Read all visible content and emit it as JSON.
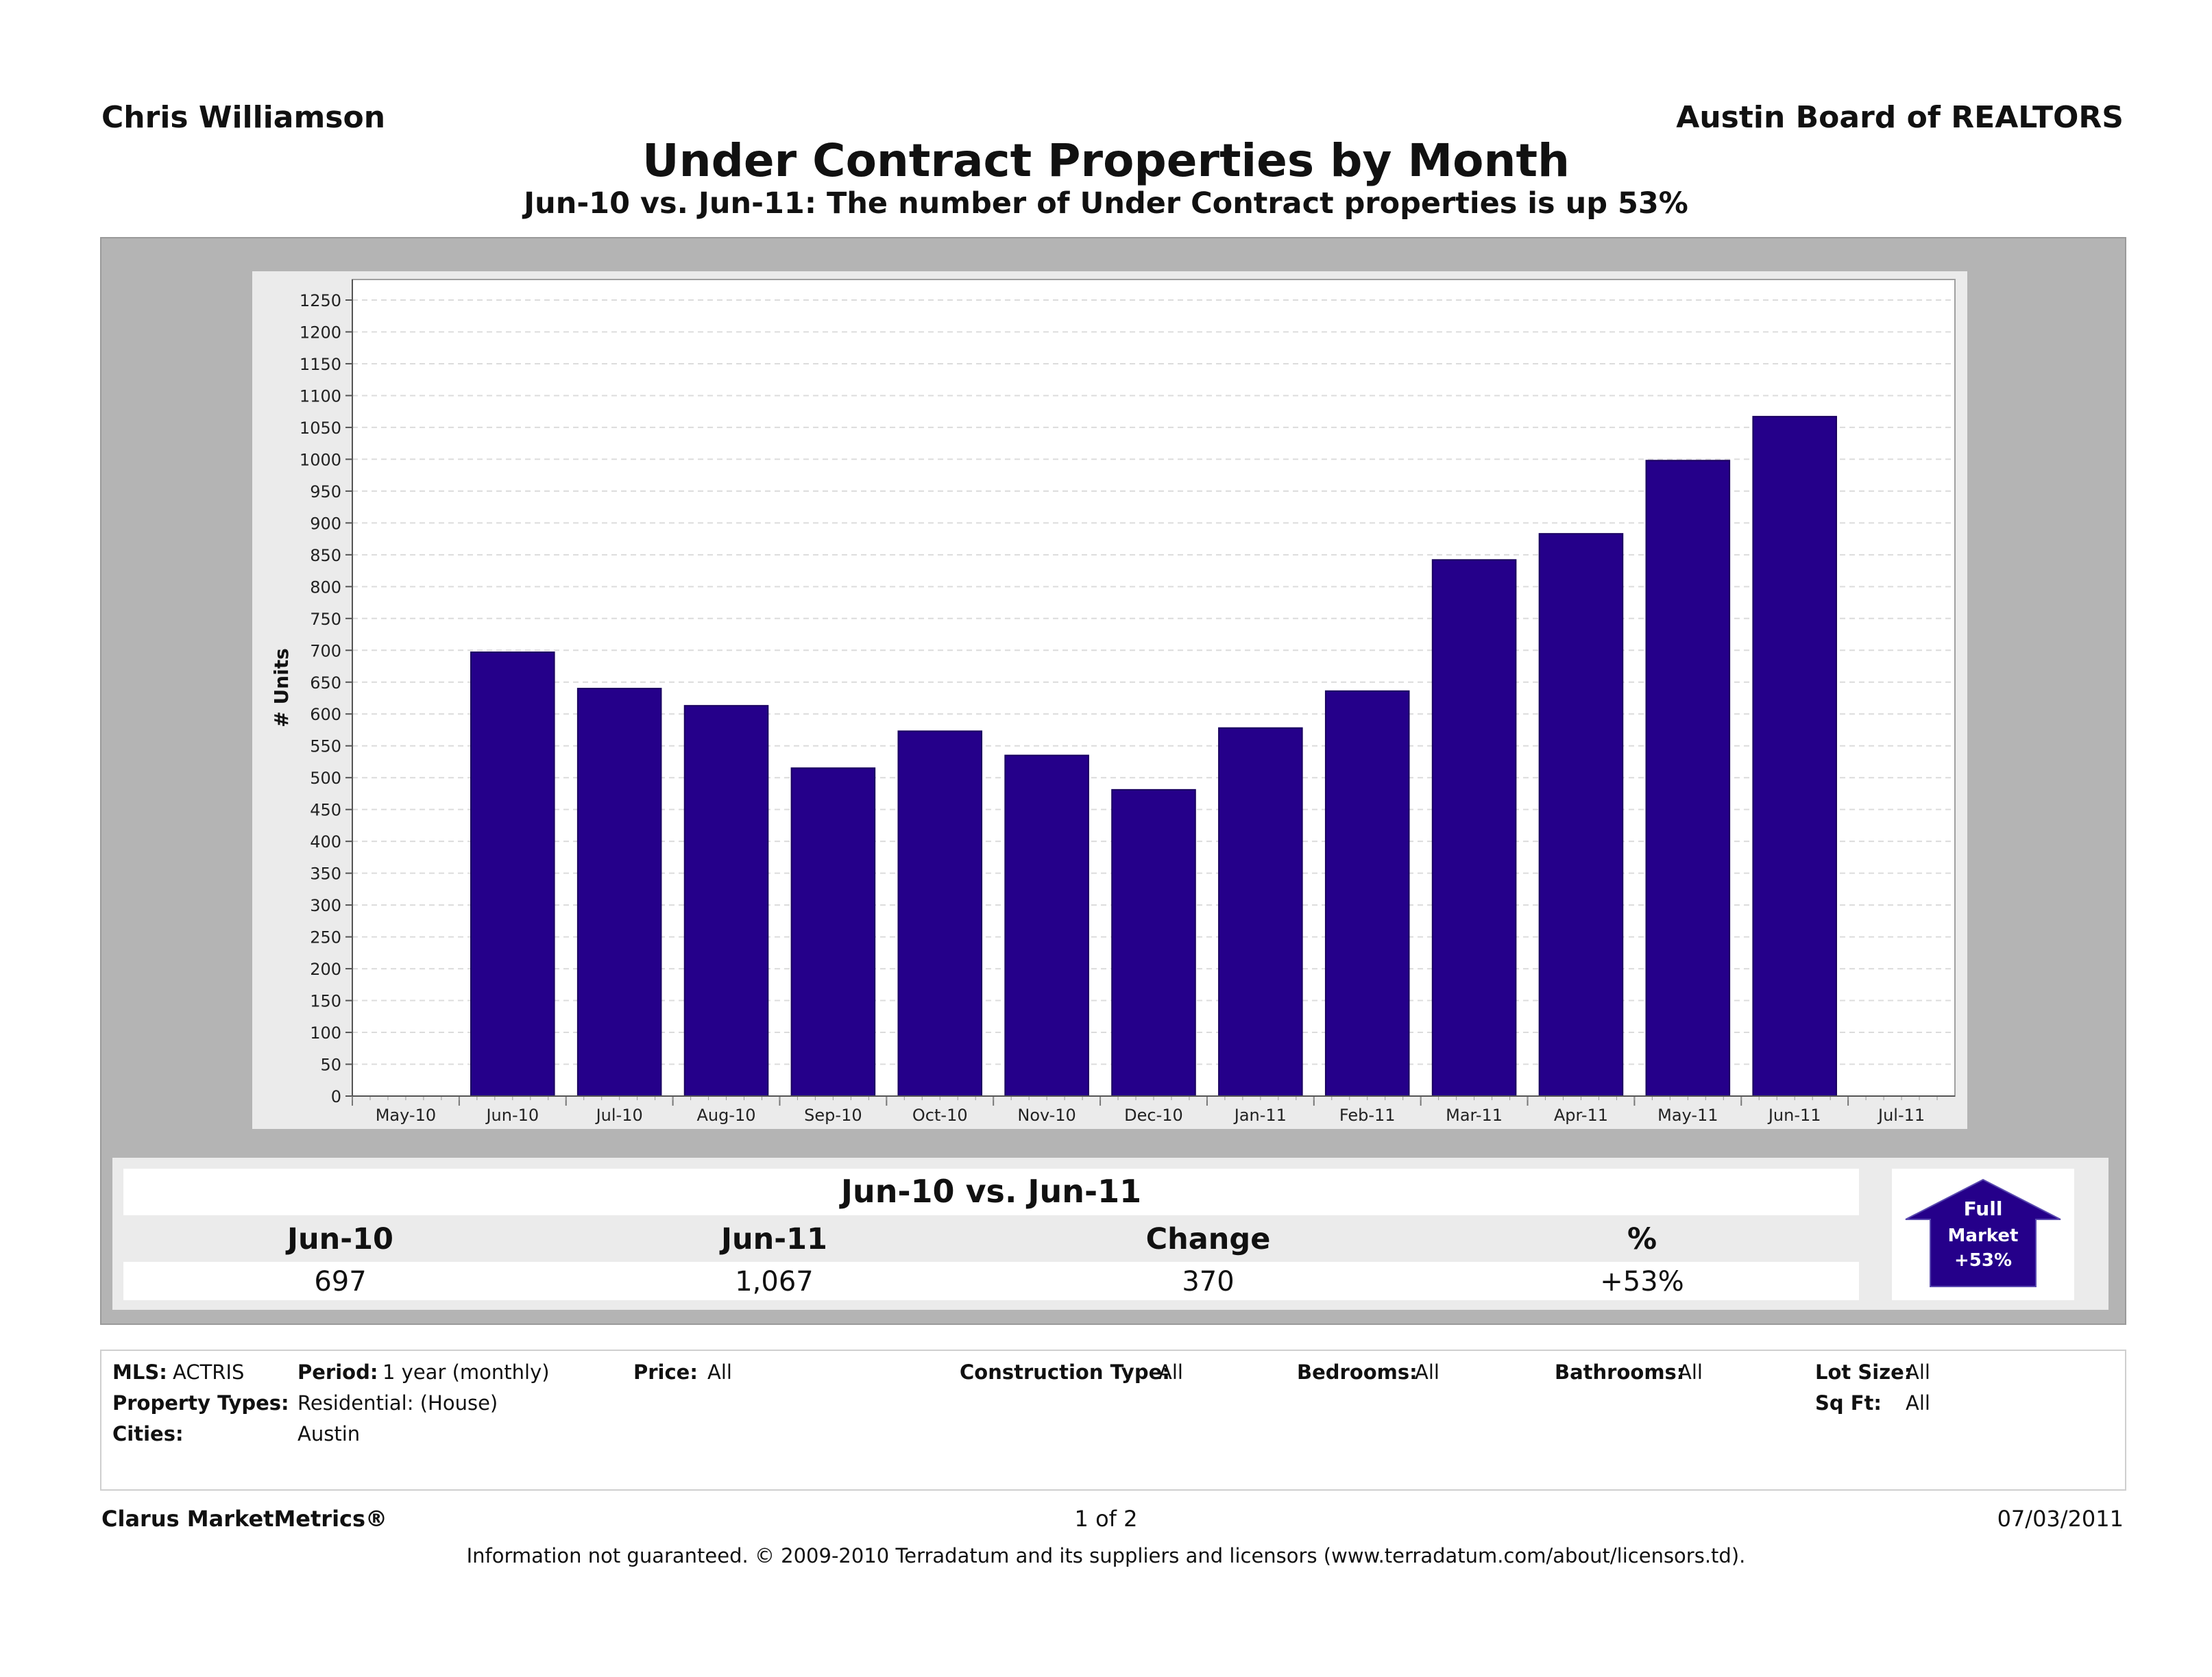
{
  "header": {
    "agent": "Chris Williamson",
    "board": "Austin Board of REALTORS",
    "title": "Under Contract Properties by Month",
    "subtitle": "Jun-10 vs. Jun-11: The number of Under Contract properties is up 53%"
  },
  "chart_data": {
    "type": "bar",
    "title": "Under Contract Properties by Month",
    "xlabel": "",
    "ylabel": "# Units",
    "x_tick_labels": [
      "May-10",
      "Jun-10",
      "Jul-10",
      "Aug-10",
      "Sep-10",
      "Oct-10",
      "Nov-10",
      "Dec-10",
      "Jan-11",
      "Feb-11",
      "Mar-11",
      "Apr-11",
      "May-11",
      "Jun-11",
      "Jul-11"
    ],
    "categories": [
      "Jun-10",
      "Jul-10",
      "Aug-10",
      "Sep-10",
      "Oct-10",
      "Nov-10",
      "Dec-10",
      "Jan-11",
      "Feb-11",
      "Mar-11",
      "Apr-11",
      "May-11",
      "Jun-11"
    ],
    "values": [
      697,
      640,
      613,
      515,
      573,
      535,
      481,
      578,
      636,
      842,
      883,
      998,
      1067
    ],
    "ylim": [
      0,
      1250
    ],
    "yticks": [
      0,
      50,
      100,
      150,
      200,
      250,
      300,
      350,
      400,
      450,
      500,
      550,
      600,
      650,
      700,
      750,
      800,
      850,
      900,
      950,
      1000,
      1050,
      1100,
      1150,
      1200,
      1250
    ],
    "grid": true,
    "bar_color": "#25008a"
  },
  "comparison": {
    "title": "Jun-10 vs. Jun-11",
    "headers": [
      "Jun-10",
      "Jun-11",
      "Change",
      "%"
    ],
    "values": [
      "697",
      "1,067",
      "370",
      "+53%"
    ]
  },
  "badge": {
    "line1": "Full",
    "line2": "Market",
    "line3": "+53%"
  },
  "filters": {
    "mls_label": "MLS:",
    "mls_value": "ACTRIS",
    "period_label": "Period:",
    "period_value": "1 year (monthly)",
    "price_label": "Price:",
    "price_value": "All",
    "construction_label": "Construction Type:",
    "construction_value": "All",
    "bedrooms_label": "Bedrooms:",
    "bedrooms_value": "All",
    "bathrooms_label": "Bathrooms:",
    "bathrooms_value": "All",
    "lotsize_label": "Lot Size:",
    "lotsize_value": "All",
    "ptypes_label": "Property Types:",
    "ptypes_value": "Residential: (House)",
    "sqft_label": "Sq Ft:",
    "sqft_value": "All",
    "cities_label": "Cities:",
    "cities_value": "Austin"
  },
  "footer": {
    "brand": "Clarus MarketMetrics®",
    "page": "1 of 2",
    "date": "07/03/2011",
    "disclaimer": "Information not guaranteed.  © 2009-2010 Terradatum and its suppliers and licensors (www.terradatum.com/about/licensors.td)."
  }
}
